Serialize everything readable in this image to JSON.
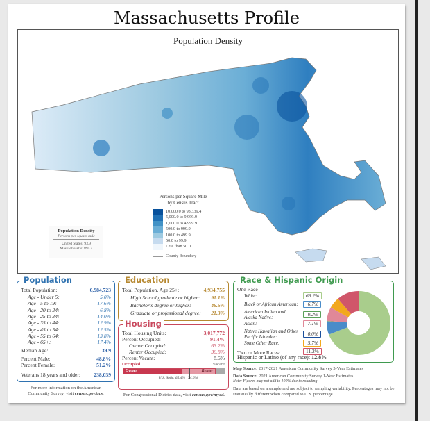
{
  "title": "Massachusetts Profile",
  "map": {
    "title": "Population Density",
    "legend_title_1": "Persons per Square Mile",
    "legend_title_2": "by Census Tract",
    "legend": [
      {
        "label": "10,000.0 to 93,339.4",
        "color": "#08519c"
      },
      {
        "label": "5,000.0 to 9,999.9",
        "color": "#2171b5"
      },
      {
        "label": "1,000.0 to 4,999.9",
        "color": "#4292c6"
      },
      {
        "label": "500.0 to 999.9",
        "color": "#6baed6"
      },
      {
        "label": "100.0 to 499.9",
        "color": "#9ecae1"
      },
      {
        "label": "50.0 to 99.9",
        "color": "#c6dbef"
      },
      {
        "label": "Less than 50.0",
        "color": "#eff6fc"
      }
    ],
    "county_boundary": "County Boundary",
    "density_box": {
      "title": "Population Density",
      "subtitle": "Persons per square mile",
      "us_label": "United States:",
      "us_value": "93.9",
      "ma_label": "Massachusetts:",
      "ma_value": "895.4"
    }
  },
  "population": {
    "title": "Population",
    "total_label": "Total Population:",
    "total": "6,984,723",
    "ages": [
      {
        "label": "Age - Under 5:",
        "value": "5.0%"
      },
      {
        "label": "Age - 5 to 19:",
        "value": "17.6%"
      },
      {
        "label": "Age - 20 to 24:",
        "value": "6.8%"
      },
      {
        "label": "Age - 25 to 34:",
        "value": "14.0%"
      },
      {
        "label": "Age - 35 to 44:",
        "value": "12.9%"
      },
      {
        "label": "Age - 45 to 54:",
        "value": "12.5%"
      },
      {
        "label": "Age - 55 to 64:",
        "value": "13.8%"
      },
      {
        "label": "Age - 65+:",
        "value": "17.4%"
      }
    ],
    "median_label": "Median Age:",
    "median": "39.9",
    "male_label": "Percent Male:",
    "male": "48.8%",
    "female_label": "Percent Female:",
    "female": "51.2%",
    "vet_label": "Veterans 18 years and older:",
    "vet": "238,039",
    "footer_1": "For more information on the American",
    "footer_2": "Community Survey, visit ",
    "footer_link": "census.gov/acs."
  },
  "education": {
    "title": "Education",
    "total_label": "Total Population, Age 25+:",
    "total": "4,934,755",
    "items": [
      {
        "label": "High School graduate or higher:",
        "value": "91.1%"
      },
      {
        "label": "Bachelor's degree or higher:",
        "value": "46.6%"
      },
      {
        "label": "Graduate or professional degree:",
        "value": "21.3%"
      }
    ]
  },
  "housing": {
    "title": "Housing",
    "units_label": "Total Housing Units:",
    "units": "3,017,772",
    "occ_label": "Percent Occupied:",
    "occ": "91.4%",
    "owner_label": "Owner Occupied:",
    "owner": "63.2%",
    "renter_label": "Renter Occupied:",
    "renter": "36.8%",
    "vacant_label": "Percent Vacant:",
    "vacant": "8.6%",
    "bar_occupied": "Occupied",
    "bar_vacant": "Vacant",
    "bar_owner": "Owner",
    "bar_renter": "Renter",
    "us_split": "U.S. Split: 65.4%",
    "us_split_2": "34.6%",
    "footer_1": "For Congressional District data, visit ",
    "footer_link": "census.gov/mycd."
  },
  "race": {
    "title": "Race & Hispanic Origin",
    "one_race": "One Race",
    "items": [
      {
        "label": "White:",
        "value": "69.2%",
        "pct": 69.2,
        "color": "#a9cd8c"
      },
      {
        "label": "Black or African American:",
        "value": "6.7%",
        "pct": 6.7,
        "color": "#4a8cc9"
      },
      {
        "label": "American Indian and Alaska Native:",
        "value": "0.2%",
        "pct": 0.2,
        "color": "#5aa05a"
      },
      {
        "label": "Asian:",
        "value": "7.1%",
        "pct": 7.1,
        "color": "#e08898"
      },
      {
        "label": "Native Hawaiian and Other Pacific Islander:",
        "value": "0.0%",
        "pct": 0.0,
        "color": "#1a4f9c"
      },
      {
        "label": "Some Other Race:",
        "value": "5.7%",
        "pct": 5.7,
        "color": "#f2a81d"
      },
      {
        "label": "Two or More Races:",
        "value": "11.2%",
        "pct": 11.2,
        "color": "#d0566a"
      }
    ],
    "hisp_label": "Hispanic or Latino (of any race):",
    "hisp": "12.8%"
  },
  "notes": {
    "map_source_label": "Map Source:",
    "map_source": " 2017-2021 American Community Survey 5-Year Estimates",
    "data_source_label": "Data Source:",
    "data_source": " 2021 American Community Survey 1-Year Estimates",
    "note": "Note: Figures may not add to 100% due to rounding",
    "disclaimer": "Data are based on a sample and are subject to sampling variability. Percentages may not be statistically different when compared to U.S. percentage."
  }
}
